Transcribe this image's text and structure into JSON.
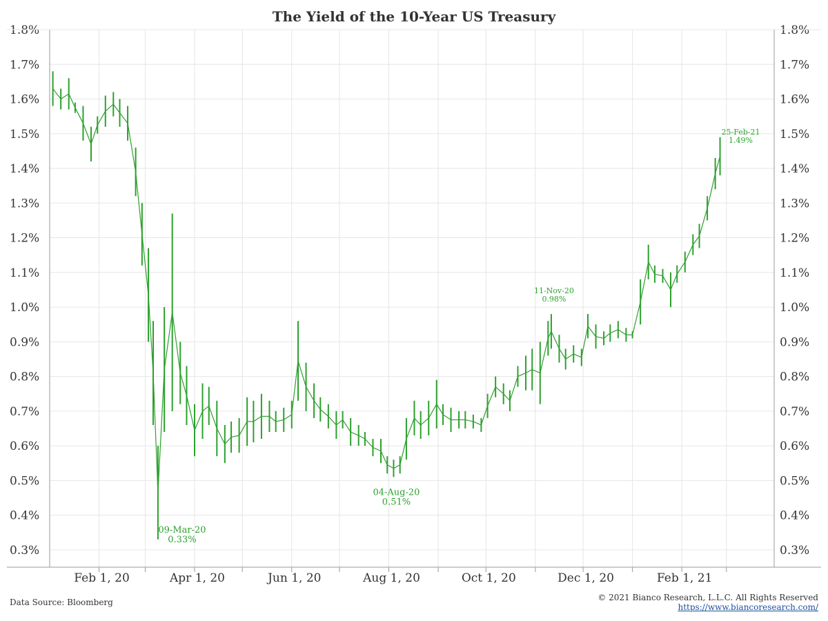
{
  "title": "The Yield of the 10-Year US Treasury",
  "footer": {
    "source": "Data Source: Bloomberg",
    "copyright": "© 2021 Bianco Research, L.L.C. All Rights Reserved",
    "link": "https://www.biancoresearch.com/"
  },
  "colors": {
    "series": "#2ca02c",
    "grid": "#e6e6e6",
    "axis": "#999999",
    "text": "#333333"
  },
  "chart_data": {
    "type": "line",
    "title": "The Yield of the 10-Year US Treasury",
    "xlabel": "",
    "ylabel": "",
    "x_range": [
      "2020-01-01",
      "2021-03-31"
    ],
    "ylim": [
      0.25,
      1.8
    ],
    "y_ticks": [
      0.3,
      0.4,
      0.5,
      0.6,
      0.7,
      0.8,
      0.9,
      1.0,
      1.1,
      1.2,
      1.3,
      1.4,
      1.5,
      1.6,
      1.7,
      1.8
    ],
    "y_tick_labels": [
      "0.3%",
      "0.4%",
      "0.5%",
      "0.6%",
      "0.7%",
      "0.8%",
      "0.9%",
      "1.0%",
      "1.1%",
      "1.2%",
      "1.3%",
      "1.4%",
      "1.5%",
      "1.6%",
      "1.7%",
      "1.8%"
    ],
    "x_ticks": [
      {
        "date": "2020-02-01",
        "label": "Feb 1, 20"
      },
      {
        "date": "2020-04-01",
        "label": "Apr 1, 20"
      },
      {
        "date": "2020-06-01",
        "label": "Jun 1, 20"
      },
      {
        "date": "2020-08-01",
        "label": "Aug 1, 20"
      },
      {
        "date": "2020-10-01",
        "label": "Oct 1, 20"
      },
      {
        "date": "2020-12-01",
        "label": "Dec 1, 20"
      },
      {
        "date": "2021-02-01",
        "label": "Feb 1, 21"
      }
    ],
    "grid": true,
    "series": [
      {
        "style": "high-low",
        "points": [
          {
            "x": "2020-01-03",
            "low": 1.58,
            "high": 1.68
          },
          {
            "x": "2020-01-08",
            "low": 1.57,
            "high": 1.63
          },
          {
            "x": "2020-01-13",
            "low": 1.57,
            "high": 1.66
          },
          {
            "x": "2020-01-17",
            "low": 1.56,
            "high": 1.59
          },
          {
            "x": "2020-01-22",
            "low": 1.48,
            "high": 1.58
          },
          {
            "x": "2020-01-27",
            "low": 1.42,
            "high": 1.52
          },
          {
            "x": "2020-01-31",
            "low": 1.5,
            "high": 1.55
          },
          {
            "x": "2020-02-05",
            "low": 1.52,
            "high": 1.61
          },
          {
            "x": "2020-02-10",
            "low": 1.55,
            "high": 1.62
          },
          {
            "x": "2020-02-14",
            "low": 1.52,
            "high": 1.6
          },
          {
            "x": "2020-02-19",
            "low": 1.48,
            "high": 1.58
          },
          {
            "x": "2020-02-24",
            "low": 1.32,
            "high": 1.46
          },
          {
            "x": "2020-02-28",
            "low": 1.12,
            "high": 1.3
          },
          {
            "x": "2020-03-03",
            "low": 0.9,
            "high": 1.17
          },
          {
            "x": "2020-03-06",
            "low": 0.66,
            "high": 0.96
          },
          {
            "x": "2020-03-09",
            "low": 0.33,
            "high": 0.6
          },
          {
            "x": "2020-03-13",
            "low": 0.64,
            "high": 1.0
          },
          {
            "x": "2020-03-18",
            "low": 0.7,
            "high": 1.27
          },
          {
            "x": "2020-03-23",
            "low": 0.72,
            "high": 0.9
          },
          {
            "x": "2020-03-27",
            "low": 0.66,
            "high": 0.83
          },
          {
            "x": "2020-04-01",
            "low": 0.57,
            "high": 0.72
          },
          {
            "x": "2020-04-06",
            "low": 0.62,
            "high": 0.78
          },
          {
            "x": "2020-04-10",
            "low": 0.66,
            "high": 0.77
          },
          {
            "x": "2020-04-15",
            "low": 0.57,
            "high": 0.73
          },
          {
            "x": "2020-04-20",
            "low": 0.55,
            "high": 0.66
          },
          {
            "x": "2020-04-24",
            "low": 0.58,
            "high": 0.67
          },
          {
            "x": "2020-04-29",
            "low": 0.58,
            "high": 0.68
          },
          {
            "x": "2020-05-04",
            "low": 0.6,
            "high": 0.74
          },
          {
            "x": "2020-05-08",
            "low": 0.61,
            "high": 0.73
          },
          {
            "x": "2020-05-13",
            "low": 0.62,
            "high": 0.75
          },
          {
            "x": "2020-05-18",
            "low": 0.64,
            "high": 0.73
          },
          {
            "x": "2020-05-22",
            "low": 0.64,
            "high": 0.7
          },
          {
            "x": "2020-05-27",
            "low": 0.64,
            "high": 0.71
          },
          {
            "x": "2020-06-01",
            "low": 0.65,
            "high": 0.73
          },
          {
            "x": "2020-06-05",
            "low": 0.73,
            "high": 0.96
          },
          {
            "x": "2020-06-10",
            "low": 0.7,
            "high": 0.84
          },
          {
            "x": "2020-06-15",
            "low": 0.68,
            "high": 0.78
          },
          {
            "x": "2020-06-19",
            "low": 0.67,
            "high": 0.74
          },
          {
            "x": "2020-06-24",
            "low": 0.65,
            "high": 0.72
          },
          {
            "x": "2020-06-29",
            "low": 0.62,
            "high": 0.7
          },
          {
            "x": "2020-07-03",
            "low": 0.65,
            "high": 0.7
          },
          {
            "x": "2020-07-08",
            "low": 0.6,
            "high": 0.68
          },
          {
            "x": "2020-07-13",
            "low": 0.6,
            "high": 0.66
          },
          {
            "x": "2020-07-17",
            "low": 0.6,
            "high": 0.64
          },
          {
            "x": "2020-07-22",
            "low": 0.57,
            "high": 0.62
          },
          {
            "x": "2020-07-27",
            "low": 0.55,
            "high": 0.62
          },
          {
            "x": "2020-07-31",
            "low": 0.52,
            "high": 0.57
          },
          {
            "x": "2020-08-04",
            "low": 0.51,
            "high": 0.56
          },
          {
            "x": "2020-08-08",
            "low": 0.52,
            "high": 0.57
          },
          {
            "x": "2020-08-12",
            "low": 0.56,
            "high": 0.68
          },
          {
            "x": "2020-08-17",
            "low": 0.63,
            "high": 0.73
          },
          {
            "x": "2020-08-21",
            "low": 0.62,
            "high": 0.7
          },
          {
            "x": "2020-08-26",
            "low": 0.63,
            "high": 0.73
          },
          {
            "x": "2020-08-31",
            "low": 0.65,
            "high": 0.79
          },
          {
            "x": "2020-09-04",
            "low": 0.66,
            "high": 0.72
          },
          {
            "x": "2020-09-09",
            "low": 0.64,
            "high": 0.71
          },
          {
            "x": "2020-09-14",
            "low": 0.65,
            "high": 0.7
          },
          {
            "x": "2020-09-18",
            "low": 0.65,
            "high": 0.7
          },
          {
            "x": "2020-09-23",
            "low": 0.65,
            "high": 0.69
          },
          {
            "x": "2020-09-28",
            "low": 0.64,
            "high": 0.68
          },
          {
            "x": "2020-10-02",
            "low": 0.68,
            "high": 0.75
          },
          {
            "x": "2020-10-07",
            "low": 0.74,
            "high": 0.8
          },
          {
            "x": "2020-10-12",
            "low": 0.72,
            "high": 0.78
          },
          {
            "x": "2020-10-16",
            "low": 0.7,
            "high": 0.76
          },
          {
            "x": "2020-10-21",
            "low": 0.77,
            "high": 0.83
          },
          {
            "x": "2020-10-26",
            "low": 0.76,
            "high": 0.86
          },
          {
            "x": "2020-10-30",
            "low": 0.76,
            "high": 0.88
          },
          {
            "x": "2020-11-04",
            "low": 0.72,
            "high": 0.9
          },
          {
            "x": "2020-11-09",
            "low": 0.86,
            "high": 0.96
          },
          {
            "x": "2020-11-11",
            "low": 0.88,
            "high": 0.98
          },
          {
            "x": "2020-11-16",
            "low": 0.84,
            "high": 0.92
          },
          {
            "x": "2020-11-20",
            "low": 0.82,
            "high": 0.88
          },
          {
            "x": "2020-11-25",
            "low": 0.84,
            "high": 0.89
          },
          {
            "x": "2020-11-30",
            "low": 0.83,
            "high": 0.88
          },
          {
            "x": "2020-12-04",
            "low": 0.91,
            "high": 0.98
          },
          {
            "x": "2020-12-09",
            "low": 0.88,
            "high": 0.95
          },
          {
            "x": "2020-12-14",
            "low": 0.89,
            "high": 0.93
          },
          {
            "x": "2020-12-18",
            "low": 0.9,
            "high": 0.95
          },
          {
            "x": "2020-12-23",
            "low": 0.91,
            "high": 0.96
          },
          {
            "x": "2020-12-28",
            "low": 0.9,
            "high": 0.94
          },
          {
            "x": "2021-01-01",
            "low": 0.91,
            "high": 0.93
          },
          {
            "x": "2021-01-06",
            "low": 0.95,
            "high": 1.08
          },
          {
            "x": "2021-01-11",
            "low": 1.08,
            "high": 1.18
          },
          {
            "x": "2021-01-15",
            "low": 1.07,
            "high": 1.12
          },
          {
            "x": "2021-01-20",
            "low": 1.07,
            "high": 1.11
          },
          {
            "x": "2021-01-25",
            "low": 1.0,
            "high": 1.1
          },
          {
            "x": "2021-01-29",
            "low": 1.07,
            "high": 1.12
          },
          {
            "x": "2021-02-03",
            "low": 1.1,
            "high": 1.16
          },
          {
            "x": "2021-02-08",
            "low": 1.15,
            "high": 1.21
          },
          {
            "x": "2021-02-12",
            "low": 1.17,
            "high": 1.24
          },
          {
            "x": "2021-02-17",
            "low": 1.25,
            "high": 1.32
          },
          {
            "x": "2021-02-22",
            "low": 1.34,
            "high": 1.43
          },
          {
            "x": "2021-02-25",
            "low": 1.38,
            "high": 1.49
          }
        ]
      }
    ],
    "annotations": [
      {
        "date": "09-Mar-20",
        "value": "0.33%",
        "x": "2020-03-09",
        "y": 0.33,
        "position": "below-right"
      },
      {
        "date": "04-Aug-20",
        "value": "0.51%",
        "x": "2020-08-04",
        "y": 0.51,
        "position": "below"
      },
      {
        "date": "11-Nov-20",
        "value": "0.98%",
        "x": "2020-11-11",
        "y": 0.98,
        "position": "above"
      },
      {
        "date": "25-Feb-21",
        "value": "1.49%",
        "x": "2021-02-25",
        "y": 1.49,
        "position": "right"
      }
    ]
  }
}
